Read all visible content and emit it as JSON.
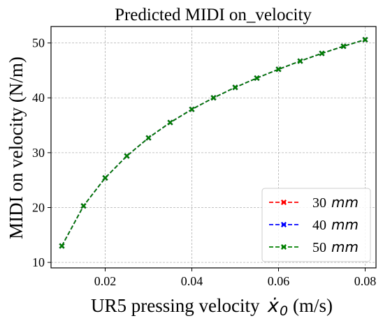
{
  "chart_data": {
    "type": "line",
    "title": "Predicted MIDI on_velocity",
    "xlabel": "UR5 pressing velocity",
    "xlabel_symbol": "ẋ",
    "xlabel_subscript": "0",
    "xlabel_unit": "(m/s)",
    "ylabel": "MIDI on velocity (N/m)",
    "xlim": [
      0.0075,
      0.0825
    ],
    "ylim": [
      9,
      53
    ],
    "xticks": [
      0.02,
      0.04,
      0.06,
      0.08
    ],
    "xtick_labels": [
      "0.02",
      "0.04",
      "0.06",
      "0.08"
    ],
    "yticks": [
      10,
      20,
      30,
      40,
      50
    ],
    "ytick_labels": [
      "10",
      "20",
      "30",
      "40",
      "50"
    ],
    "grid": true,
    "legend_position": "lower-right",
    "x": [
      0.01,
      0.015,
      0.02,
      0.025,
      0.03,
      0.035,
      0.04,
      0.045,
      0.05,
      0.055,
      0.06,
      0.065,
      0.07,
      0.075,
      0.08
    ],
    "series": [
      {
        "name": "30",
        "unit": "mm",
        "color": "#ff0000",
        "values": [
          13.0,
          20.3,
          25.4,
          29.4,
          32.7,
          35.5,
          37.9,
          40.0,
          41.9,
          43.6,
          45.2,
          46.7,
          48.1,
          49.4,
          50.6
        ]
      },
      {
        "name": "40",
        "unit": "mm",
        "color": "#0000ff",
        "values": [
          13.0,
          20.3,
          25.4,
          29.4,
          32.7,
          35.5,
          37.9,
          40.0,
          41.9,
          43.6,
          45.2,
          46.7,
          48.1,
          49.4,
          50.6
        ]
      },
      {
        "name": "50",
        "unit": "mm",
        "color": "#008000",
        "values": [
          13.0,
          20.3,
          25.4,
          29.4,
          32.7,
          35.5,
          37.9,
          40.0,
          41.9,
          43.6,
          45.2,
          46.7,
          48.1,
          49.4,
          50.6
        ]
      }
    ]
  }
}
